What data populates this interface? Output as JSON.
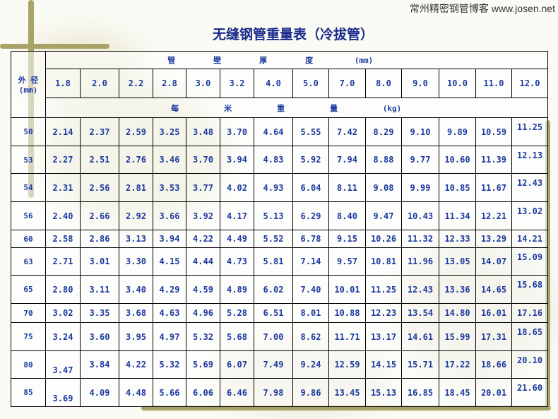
{
  "site_label": "常州精密钢管博客 www.josen.net",
  "title": "无缝钢管重量表（冷拔管）",
  "od_header": [
    "外 径",
    "(mm)"
  ],
  "thickness_header": [
    "管",
    "壁",
    "厚",
    "度",
    "(mm)"
  ],
  "weight_header": [
    "每",
    "米",
    "重",
    "量",
    "(kg)"
  ],
  "thickness": [
    "1.8",
    "2.0",
    "2.2",
    "2.8",
    "3.0",
    "3.2",
    "4.0",
    "5.0",
    "7.0",
    "8.0",
    "9.0",
    "10.0",
    "11.0",
    "12.0"
  ],
  "rows": [
    {
      "od": "50",
      "w": [
        "2.14",
        "2.37",
        "2.59",
        "3.25",
        "3.48",
        "3.70",
        "4.64",
        "5.55",
        "7.42",
        "8.29",
        "9.10",
        "9.89",
        "10.59",
        "11.25"
      ]
    },
    {
      "od": "53",
      "w": [
        "2.27",
        "2.51",
        "2.76",
        "3.46",
        "3.70",
        "3.94",
        "4.83",
        "5.92",
        "7.94",
        "8.88",
        "9.77",
        "10.60",
        "11.39",
        "12.13"
      ]
    },
    {
      "od": "54",
      "w": [
        "2.31",
        "2.56",
        "2.81",
        "3.53",
        "3.77",
        "4.02",
        "4.93",
        "6.04",
        "8.11",
        "9.08",
        "9.99",
        "10.85",
        "11.67",
        "12.43"
      ]
    },
    {
      "od": "56",
      "w": [
        "2.40",
        "2.66",
        "2.92",
        "3.66",
        "3.92",
        "4.17",
        "5.13",
        "6.29",
        "8.40",
        "9.47",
        "10.43",
        "11.34",
        "12.21",
        "13.02"
      ]
    },
    {
      "od": "60",
      "w": [
        "2.58",
        "2.86",
        "3.13",
        "3.94",
        "4.22",
        "4.49",
        "5.52",
        "6.78",
        "9.15",
        "10.26",
        "11.32",
        "12.33",
        "13.29",
        "14.21"
      ]
    },
    {
      "od": "63",
      "w": [
        "2.71",
        "3.01",
        "3.30",
        "4.15",
        "4.44",
        "4.73",
        "5.81",
        "7.14",
        "9.57",
        "10.81",
        "11.96",
        "13.05",
        "14.07",
        "15.09"
      ]
    },
    {
      "od": "65",
      "w": [
        "2.80",
        "3.11",
        "3.40",
        "4.29",
        "4.59",
        "4.89",
        "6.02",
        "7.40",
        "10.01",
        "11.25",
        "12.43",
        "13.36",
        "14.65",
        "15.68"
      ]
    },
    {
      "od": "70",
      "w": [
        "3.02",
        "3.35",
        "3.68",
        "4.63",
        "4.96",
        "5.28",
        "6.51",
        "8.01",
        "10.88",
        "12.23",
        "13.54",
        "14.80",
        "16.01",
        "17.16"
      ]
    },
    {
      "od": "75",
      "w": [
        "3.24",
        "3.60",
        "3.95",
        "4.97",
        "5.32",
        "5.68",
        "7.00",
        "8.62",
        "11.71",
        "13.17",
        "14.61",
        "15.99",
        "17.31",
        "18.65"
      ]
    },
    {
      "od": "80",
      "w": [
        "3.47",
        "3.84",
        "4.22",
        "5.32",
        "5.69",
        "6.07",
        "7.49",
        "9.24",
        "12.59",
        "14.15",
        "15.71",
        "17.22",
        "18.66",
        "20.10"
      ]
    },
    {
      "od": "85",
      "w": [
        "3.69",
        "4.09",
        "4.48",
        "5.66",
        "6.06",
        "6.46",
        "7.98",
        "9.86",
        "13.45",
        "15.13",
        "16.85",
        "18.45",
        "20.01",
        "21.60"
      ]
    }
  ],
  "colors": {
    "text": "#1c3aa0",
    "title": "#1a2a8c",
    "decor": "#a9a36a"
  }
}
